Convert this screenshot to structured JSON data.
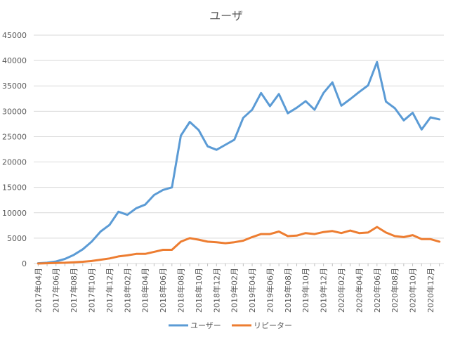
{
  "chart_data": {
    "type": "line",
    "title": "ユーザ",
    "xlabel": "",
    "ylabel": "",
    "ylim": [
      0,
      45000
    ],
    "yticks": [
      "0",
      "5000",
      "10000",
      "15000",
      "20000",
      "25000",
      "30000",
      "35000",
      "40000",
      "45000"
    ],
    "grid": true,
    "legend": "bottom",
    "categories": [
      "2017年04月",
      "2017年05月",
      "2017年06月",
      "2017年07月",
      "2017年08月",
      "2017年09月",
      "2017年10月",
      "2017年11月",
      "2017年12月",
      "2018年01月",
      "2018年02月",
      "2018年03月",
      "2018年04月",
      "2018年05月",
      "2018年06月",
      "2018年07月",
      "2018年08月",
      "2018年09月",
      "2018年10月",
      "2018年11月",
      "2018年12月",
      "2019年01月",
      "2019年02月",
      "2019年03月",
      "2019年04月",
      "2019年05月",
      "2019年06月",
      "2019年07月",
      "2019年08月",
      "2019年09月",
      "2019年10月",
      "2019年11月",
      "2019年12月",
      "2020年01月",
      "2020年02月",
      "2020年03月",
      "2020年04月",
      "2020年05月",
      "2020年06月",
      "2020年07月",
      "2020年08月",
      "2020年09月",
      "2020年10月",
      "2020年11月",
      "2020年12月",
      "2021年01月"
    ],
    "tick_labels": [
      "2017年04月",
      "2017年06月",
      "2017年08月",
      "2017年10月",
      "2017年12月",
      "2018年02月",
      "2018年04月",
      "2018年06月",
      "2018年08月",
      "2018年10月",
      "2018年12月",
      "2019年02月",
      "2019年04月",
      "2019年06月",
      "2019年08月",
      "2019年10月",
      "2019年12月",
      "2020年02月",
      "2020年04月",
      "2020年06月",
      "2020年08月",
      "2020年10月",
      "2020年12月"
    ],
    "series": [
      {
        "name": "ユーザー",
        "color": "#5b9bd5",
        "values": [
          50,
          150,
          400,
          900,
          1700,
          2800,
          4300,
          6300,
          7600,
          10200,
          9600,
          10900,
          11600,
          13500,
          14500,
          15000,
          25200,
          27900,
          26300,
          23100,
          22400,
          23400,
          24400,
          28700,
          30300,
          33600,
          31000,
          33400,
          29600,
          30700,
          32000,
          30300,
          33600,
          35700,
          31100,
          32400,
          33800,
          35100,
          39700,
          31900,
          30600,
          28200,
          29700,
          26400,
          28800,
          28400
        ]
      },
      {
        "name": "リピーター",
        "color": "#ed7d31",
        "values": [
          0,
          50,
          100,
          150,
          250,
          350,
          500,
          750,
          1000,
          1400,
          1600,
          1900,
          1900,
          2300,
          2700,
          2700,
          4300,
          5000,
          4700,
          4300,
          4200,
          4000,
          4200,
          4500,
          5200,
          5800,
          5800,
          6300,
          5400,
          5500,
          6000,
          5800,
          6200,
          6400,
          6000,
          6500,
          6000,
          6100,
          7200,
          6100,
          5400,
          5200,
          5600,
          4800,
          4800,
          4300
        ]
      }
    ]
  }
}
